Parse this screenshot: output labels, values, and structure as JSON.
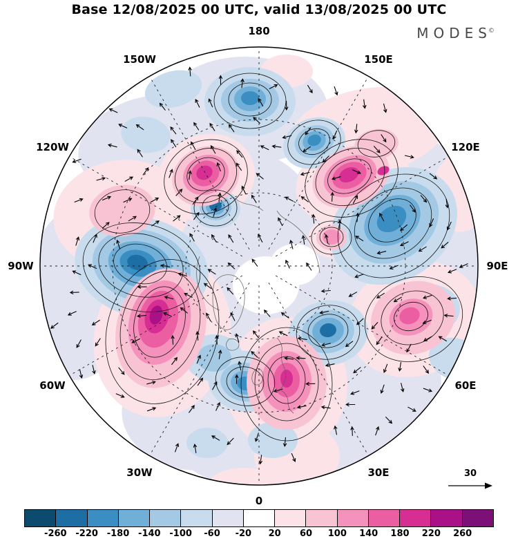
{
  "title": "Base 12/08/2025 00 UTC, valid 13/08/2025 00 UTC",
  "logo": {
    "text": "MODES",
    "mark": "©"
  },
  "reference_arrow": {
    "label": "30"
  },
  "chart_data": {
    "type": "heatmap",
    "title": "Base 12/08/2025 00 UTC, valid 13/08/2025 00 UTC",
    "projection": "north polar stereographic",
    "legend_position": "bottom",
    "lon_labels": [
      "180",
      "150W",
      "150E",
      "120W",
      "120E",
      "90W",
      "90E",
      "60W",
      "60E",
      "30W",
      "30E",
      "0"
    ],
    "reference_vector": "30",
    "colorbar": {
      "levels": [
        -260,
        -220,
        -180,
        -140,
        -100,
        -60,
        -20,
        20,
        60,
        100,
        140,
        180,
        220,
        260
      ],
      "tick_labels": [
        "-260",
        "-220",
        "-180",
        "-140",
        "-100",
        "-60",
        "-20",
        "20",
        "60",
        "100",
        "140",
        "180",
        "220",
        "260"
      ],
      "colors": [
        "#0c4a6e",
        "#1d6ea5",
        "#3a8ec2",
        "#6fafd8",
        "#a3c9e4",
        "#c8dcee",
        "#e2e3f0",
        "#ffffff",
        "#fbe3e8",
        "#f8c3d2",
        "#f492bc",
        "#eb5fa2",
        "#d62e92",
        "#ab1187",
        "#7c1076"
      ]
    }
  },
  "map": {
    "graticule": {
      "lat_circle_radii": [
        106,
        212
      ],
      "meridian_step_deg": 30,
      "inner_radius": 28,
      "outer_radius": 316
    },
    "blobs": [
      [
        300,
        95,
        120,
        78,
        0,
        6
      ],
      [
        150,
        140,
        95,
        62,
        -20,
        6
      ],
      [
        148,
        330,
        155,
        115,
        12,
        6
      ],
      [
        505,
        270,
        145,
        155,
        -30,
        6
      ],
      [
        320,
        305,
        95,
        145,
        0,
        6
      ],
      [
        330,
        520,
        165,
        125,
        0,
        6
      ],
      [
        462,
        505,
        125,
        95,
        -20,
        6
      ],
      [
        215,
        542,
        95,
        72,
        15,
        6
      ],
      [
        52,
        390,
        75,
        95,
        0,
        6
      ],
      [
        620,
        330,
        60,
        80,
        0,
        6
      ],
      [
        375,
        608,
        90,
        45,
        0,
        6
      ],
      [
        330,
        348,
        48,
        42,
        0,
        7
      ],
      [
        372,
        318,
        36,
        30,
        0,
        7
      ],
      [
        120,
        245,
        98,
        78,
        -10,
        8
      ],
      [
        478,
        125,
        115,
        62,
        -10,
        8
      ],
      [
        243,
        192,
        72,
        62,
        -20,
        8
      ],
      [
        455,
        193,
        85,
        62,
        -25,
        8
      ],
      [
        545,
        397,
        98,
        82,
        -20,
        8
      ],
      [
        360,
        492,
        88,
        98,
        0,
        8
      ],
      [
        180,
        422,
        98,
        118,
        15,
        8
      ],
      [
        375,
        595,
        62,
        48,
        0,
        8
      ],
      [
        360,
        38,
        38,
        24,
        0,
        8
      ],
      [
        425,
        280,
        34,
        28,
        0,
        8
      ],
      [
        618,
        210,
        48,
        62,
        20,
        8
      ],
      [
        298,
        638,
        52,
        26,
        0,
        8
      ],
      [
        307,
        82,
        66,
        50,
        0,
        5
      ],
      [
        400,
        142,
        46,
        36,
        -20,
        5
      ],
      [
        150,
        322,
        98,
        72,
        14,
        5
      ],
      [
        515,
        262,
        98,
        78,
        -35,
        5
      ],
      [
        420,
        417,
        58,
        47,
        -10,
        5
      ],
      [
        300,
        487,
        54,
        44,
        10,
        5
      ],
      [
        255,
        453,
        42,
        34,
        0,
        5
      ],
      [
        196,
        64,
        42,
        26,
        -15,
        5
      ],
      [
        156,
        130,
        36,
        26,
        10,
        5
      ],
      [
        565,
        382,
        46,
        36,
        0,
        5
      ],
      [
        245,
        576,
        30,
        22,
        0,
        5
      ],
      [
        340,
        572,
        36,
        26,
        0,
        5
      ],
      [
        257,
        237,
        36,
        29,
        0,
        5
      ],
      [
        605,
        455,
        40,
        30,
        20,
        5
      ],
      [
        307,
        80,
        42,
        31,
        0,
        4
      ],
      [
        150,
        320,
        72,
        52,
        14,
        4
      ],
      [
        515,
        257,
        70,
        54,
        -35,
        4
      ],
      [
        420,
        415,
        38,
        31,
        -10,
        4
      ],
      [
        300,
        488,
        36,
        28,
        10,
        4
      ],
      [
        400,
        140,
        29,
        23,
        -20,
        4
      ],
      [
        257,
        235,
        23,
        19,
        0,
        4
      ],
      [
        255,
        453,
        25,
        20,
        0,
        4
      ],
      [
        307,
        78,
        23,
        18,
        0,
        3
      ],
      [
        148,
        318,
        47,
        33,
        14,
        3
      ],
      [
        513,
        254,
        44,
        33,
        -35,
        3
      ],
      [
        420,
        414,
        23,
        19,
        -10,
        3
      ],
      [
        300,
        489,
        21,
        17,
        10,
        3
      ],
      [
        400,
        139,
        17,
        14,
        -20,
        3
      ],
      [
        257,
        234,
        14,
        12,
        0,
        3
      ],
      [
        145,
        316,
        27,
        19,
        14,
        2
      ],
      [
        512,
        252,
        23,
        17,
        -35,
        2
      ],
      [
        468,
        198,
        17,
        12,
        -30,
        2
      ],
      [
        307,
        77,
        13,
        10,
        0,
        2
      ],
      [
        300,
        490,
        12,
        10,
        10,
        2
      ],
      [
        400,
        138,
        10,
        8,
        -20,
        2
      ],
      [
        144,
        315,
        15,
        11,
        14,
        1
      ],
      [
        257,
        233,
        9,
        7,
        0,
        1
      ],
      [
        420,
        413,
        12,
        10,
        -10,
        1
      ],
      [
        122,
        240,
        48,
        37,
        -10,
        9
      ],
      [
        243,
        190,
        50,
        42,
        -25,
        9
      ],
      [
        453,
        191,
        58,
        42,
        -25,
        9
      ],
      [
        543,
        395,
        62,
        52,
        -20,
        9
      ],
      [
        360,
        489,
        58,
        68,
        0,
        9
      ],
      [
        178,
        410,
        64,
        88,
        15,
        9
      ],
      [
        490,
        144,
        32,
        22,
        -10,
        9
      ],
      [
        425,
        279,
        22,
        18,
        0,
        9
      ],
      [
        243,
        188,
        34,
        28,
        -25,
        10
      ],
      [
        452,
        190,
        40,
        28,
        -25,
        10
      ],
      [
        540,
        394,
        32,
        26,
        -20,
        10
      ],
      [
        360,
        487,
        36,
        44,
        0,
        10
      ],
      [
        176,
        402,
        44,
        62,
        15,
        10
      ],
      [
        425,
        278,
        13,
        11,
        0,
        10
      ],
      [
        242,
        186,
        21,
        18,
        -25,
        11
      ],
      [
        451,
        189,
        26,
        18,
        -25,
        11
      ],
      [
        360,
        485,
        19,
        25,
        0,
        11
      ],
      [
        174,
        397,
        28,
        42,
        15,
        11
      ],
      [
        538,
        392,
        15,
        12,
        -20,
        11
      ],
      [
        241,
        185,
        12,
        10,
        -25,
        12
      ],
      [
        450,
        188,
        15,
        10,
        -25,
        12
      ],
      [
        172,
        393,
        17,
        25,
        15,
        12
      ],
      [
        500,
        182,
        9,
        6,
        -25,
        12
      ],
      [
        360,
        483,
        9,
        13,
        0,
        12
      ],
      [
        171,
        391,
        9,
        14,
        15,
        13
      ]
    ],
    "contours": [
      [
        307,
        79,
        31,
        24,
        0
      ],
      [
        307,
        81,
        52,
        40,
        0
      ],
      [
        400,
        140,
        23,
        18,
        -20
      ],
      [
        400,
        141,
        39,
        31,
        -20
      ],
      [
        243,
        187,
        28,
        23,
        -25
      ],
      [
        243,
        189,
        46,
        38,
        -25
      ],
      [
        243,
        191,
        62,
        52,
        -25
      ],
      [
        257,
        234,
        19,
        16,
        0
      ],
      [
        257,
        236,
        31,
        26,
        0
      ],
      [
        451,
        190,
        33,
        23,
        -25
      ],
      [
        452,
        191,
        52,
        39,
        -25
      ],
      [
        454,
        193,
        70,
        53,
        -25
      ],
      [
        148,
        317,
        39,
        28,
        14
      ],
      [
        149,
        319,
        62,
        45,
        14
      ],
      [
        150,
        322,
        86,
        63,
        14
      ],
      [
        513,
        254,
        37,
        28,
        -35
      ],
      [
        514,
        258,
        60,
        46,
        -35
      ],
      [
        515,
        262,
        86,
        69,
        -35
      ],
      [
        176,
        401,
        36,
        52,
        15
      ],
      [
        177,
        406,
        56,
        80,
        15
      ],
      [
        180,
        415,
        80,
        106,
        15
      ],
      [
        360,
        485,
        27,
        34,
        0
      ],
      [
        360,
        488,
        46,
        56,
        0
      ],
      [
        360,
        491,
        66,
        82,
        0
      ],
      [
        420,
        414,
        29,
        24,
        -10
      ],
      [
        420,
        416,
        46,
        39,
        -10
      ],
      [
        300,
        488,
        27,
        22,
        10
      ],
      [
        300,
        487,
        43,
        35,
        10
      ],
      [
        540,
        393,
        25,
        20,
        -20
      ],
      [
        542,
        395,
        46,
        38,
        -20
      ],
      [
        544,
        397,
        72,
        60,
        -20
      ],
      [
        425,
        278,
        17,
        14,
        0
      ],
      [
        425,
        279,
        29,
        24,
        0
      ],
      [
        122,
        241,
        40,
        31,
        -10
      ],
      [
        490,
        143,
        27,
        19,
        -10
      ]
    ],
    "vortices": [
      [
        243,
        186,
        -1.1
      ],
      [
        451,
        189,
        -1.1
      ],
      [
        174,
        397,
        -1.5
      ],
      [
        360,
        485,
        -1.1
      ],
      [
        540,
        392,
        -0.9
      ],
      [
        122,
        240,
        -0.6
      ],
      [
        307,
        79,
        1.0
      ],
      [
        400,
        139,
        0.8
      ],
      [
        148,
        317,
        1.4
      ],
      [
        513,
        254,
        1.4
      ],
      [
        420,
        414,
        0.9
      ],
      [
        300,
        488,
        0.9
      ],
      [
        257,
        234,
        0.7
      ]
    ],
    "coastlines": [
      "M255,345 q6,-10 16,-12 q12,-2 20,6 q7,8 8,20 q1,14 -3,26 q-4,14 -12,22 q-8,8 -16,4 q-8,-5 -11,-16 q-4,-14 -4,-27 q0,-14 2,-23 z",
      "M346,424 q9,9 7,21 q-2,11 3,21 q5,10 1,21 q-3,9 -9,15",
      "M318,468 q7,2 8,9 q1,7 -3,12 q-5,5 -10,2 q-4,-4 -3,-11 q1,-8 8,-12 z",
      "M408,330 q-3,-28 -17,-48 q-13,-19 -33,-30 q-8,-5 -12,-12",
      "M282,220 q11,9 24,11 q12,2 20,9",
      "M234,306 q-7,19 -3,38 q3,15 13,27 q8,9 19,13",
      "M276,426 q8,-2 13,3 q4,5 0,10 q-6,5 -13,2 q-5,-4 -3,-10 z",
      "M352,500 q10,6 10,17 q0,10 8,16"
    ]
  }
}
